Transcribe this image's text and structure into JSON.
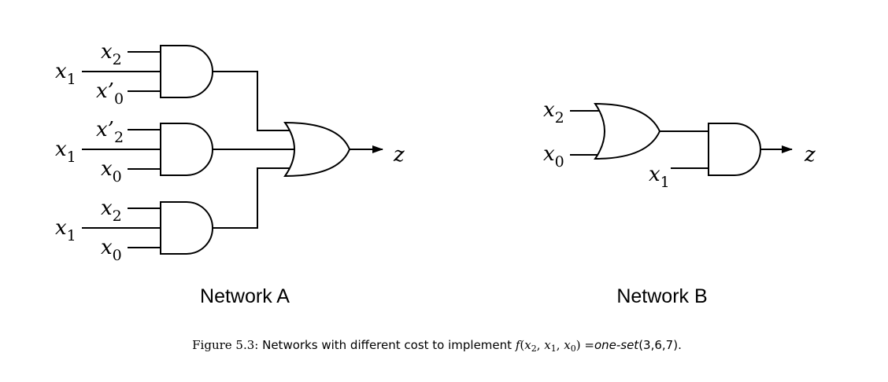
{
  "network_a": {
    "title": "Network A",
    "gates": [
      {
        "type": "AND",
        "inputs": [
          "x2",
          "x1",
          "x'0"
        ]
      },
      {
        "type": "AND",
        "inputs": [
          "x'2",
          "x1",
          "x0"
        ]
      },
      {
        "type": "AND",
        "inputs": [
          "x2",
          "x1",
          "x0"
        ]
      },
      {
        "type": "OR",
        "inputs": [
          "AND1",
          "AND2",
          "AND3"
        ],
        "output": "z"
      }
    ],
    "labels": {
      "g1_top": {
        "base": "x",
        "prime": "",
        "sub": "2"
      },
      "g1_mid": {
        "base": "x",
        "prime": "",
        "sub": "1"
      },
      "g1_bot": {
        "base": "x",
        "prime": "’",
        "sub": "0"
      },
      "g2_top": {
        "base": "x",
        "prime": "’",
        "sub": "2"
      },
      "g2_mid": {
        "base": "x",
        "prime": "",
        "sub": "1"
      },
      "g2_bot": {
        "base": "x",
        "prime": "",
        "sub": "0"
      },
      "g3_top": {
        "base": "x",
        "prime": "",
        "sub": "2"
      },
      "g3_mid": {
        "base": "x",
        "prime": "",
        "sub": "1"
      },
      "g3_bot": {
        "base": "x",
        "prime": "",
        "sub": "0"
      },
      "output": "z"
    }
  },
  "network_b": {
    "title": "Network B",
    "gates": [
      {
        "type": "OR",
        "inputs": [
          "x2",
          "x0"
        ]
      },
      {
        "type": "AND",
        "inputs": [
          "OR",
          "x1"
        ],
        "output": "z"
      }
    ],
    "labels": {
      "or_top": {
        "base": "x",
        "sub": "2"
      },
      "or_bot": {
        "base": "x",
        "sub": "0"
      },
      "and_bot": {
        "base": "x",
        "sub": "1"
      },
      "output": "z"
    }
  },
  "caption": {
    "prefix": "Figure 5.3:",
    "text": " Networks with different cost to implement ",
    "func": "f",
    "args": "(x2, x1, x0)",
    "arg_base": "x",
    "arg_subs": [
      "2",
      "1",
      "0"
    ],
    "equals": " =",
    "set_name": "one-set",
    "set_args": "(3,6,7)",
    "end": "."
  }
}
